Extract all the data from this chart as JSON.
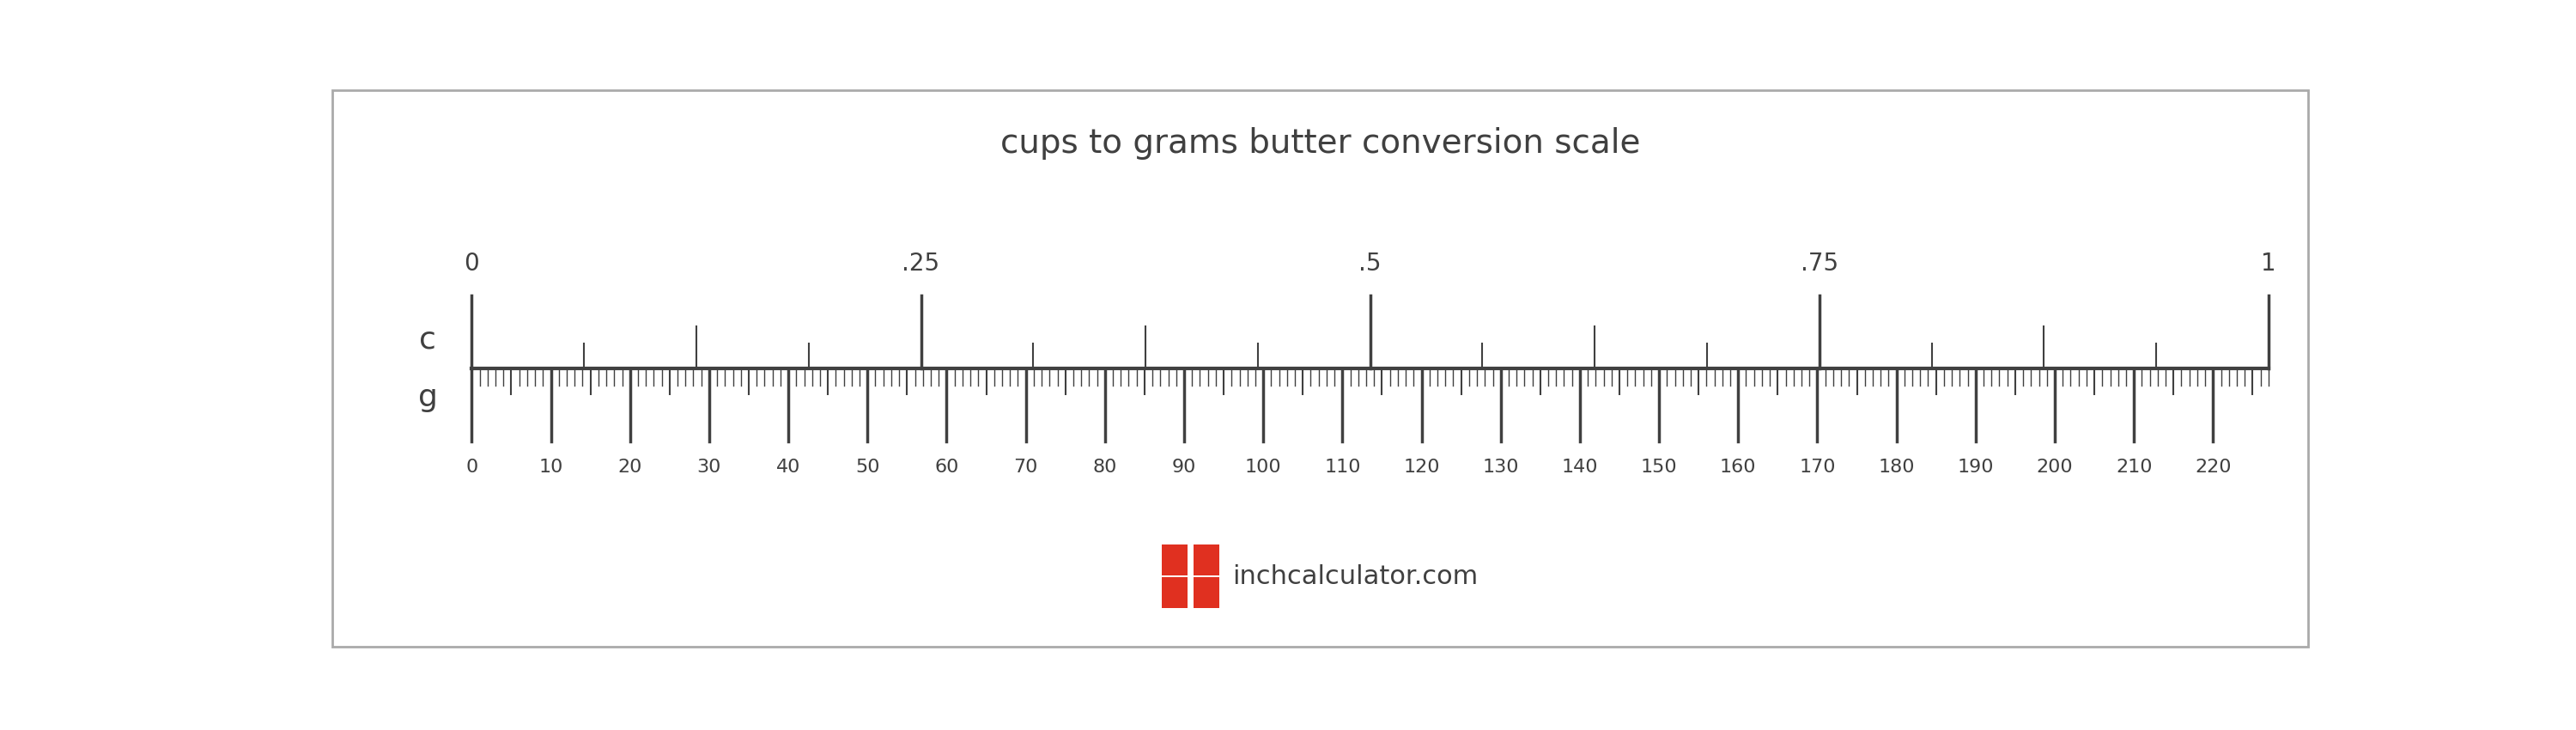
{
  "title": "cups to grams butter conversion scale",
  "title_fontsize": 28,
  "background_color": "#ffffff",
  "border_color": "#aaaaaa",
  "scale_color": "#404040",
  "text_color": "#404040",
  "cups_label": "c",
  "grams_label": "g",
  "cups_major_ticks": [
    0,
    0.25,
    0.5,
    0.75,
    1.0
  ],
  "cups_major_labels": [
    "0",
    ".25",
    ".5",
    ".75",
    "1"
  ],
  "grams_max": 227,
  "grams_major_step": 10,
  "grams_minor_step": 5,
  "logo_color": "#e03020",
  "logo_text": "inchcalculator.com",
  "logo_fontsize": 22
}
